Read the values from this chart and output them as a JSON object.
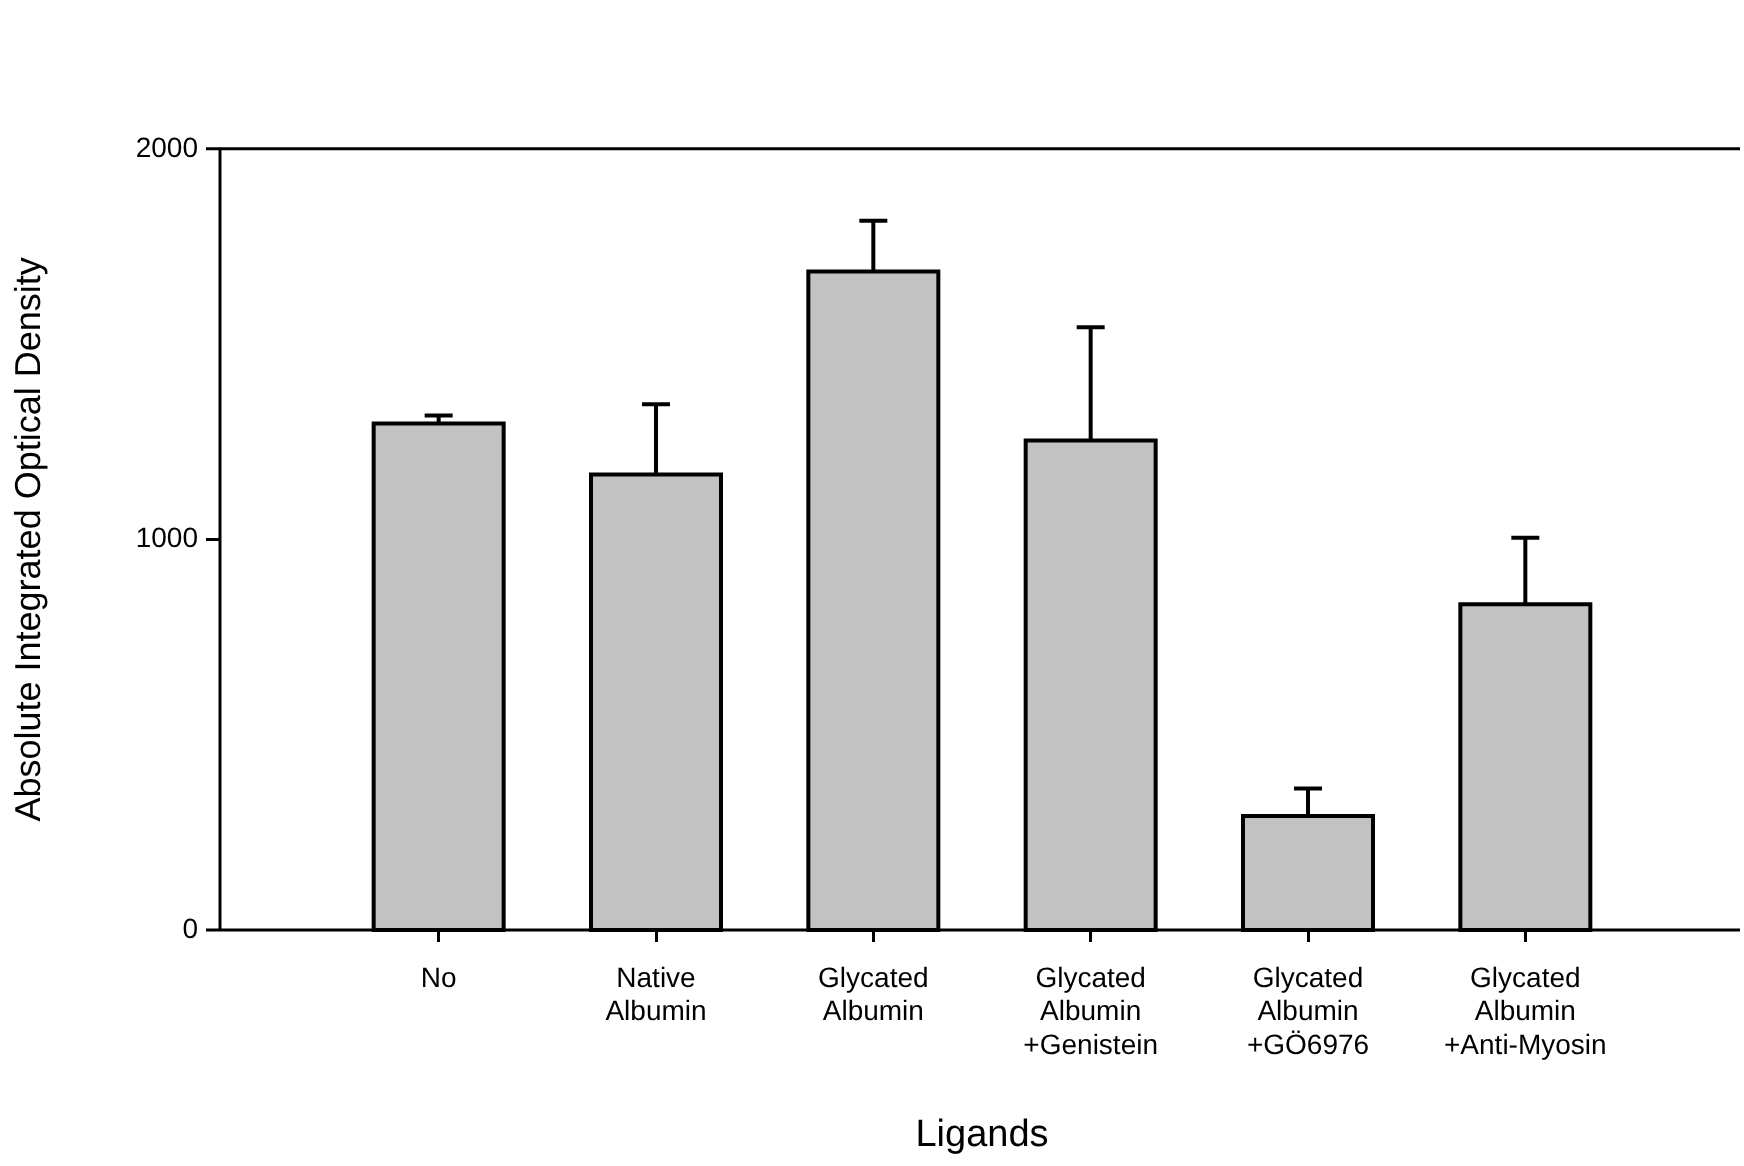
{
  "chart_data": {
    "type": "bar",
    "xlabel": "Ligands",
    "ylabel": "Absolute Integrated Optical Density",
    "categories": [
      "No",
      "Native\nAlbumin",
      "Glycated\nAlbumin",
      "Glycated\nAlbumin\n+Genistein",
      "Glycated\nAlbumin\n+GÖ6976",
      "Glycated\nAlbumin\n+Anti-Myosin"
    ],
    "values": [
      1297,
      1166,
      1686,
      1253,
      292,
      834
    ],
    "errors": [
      20,
      180,
      130,
      290,
      70,
      170
    ],
    "color": "#c2c2c2",
    "ylim": [
      0,
      2000
    ],
    "yticks": [
      0,
      1000,
      2000
    ],
    "grid": false,
    "legend": false
  }
}
